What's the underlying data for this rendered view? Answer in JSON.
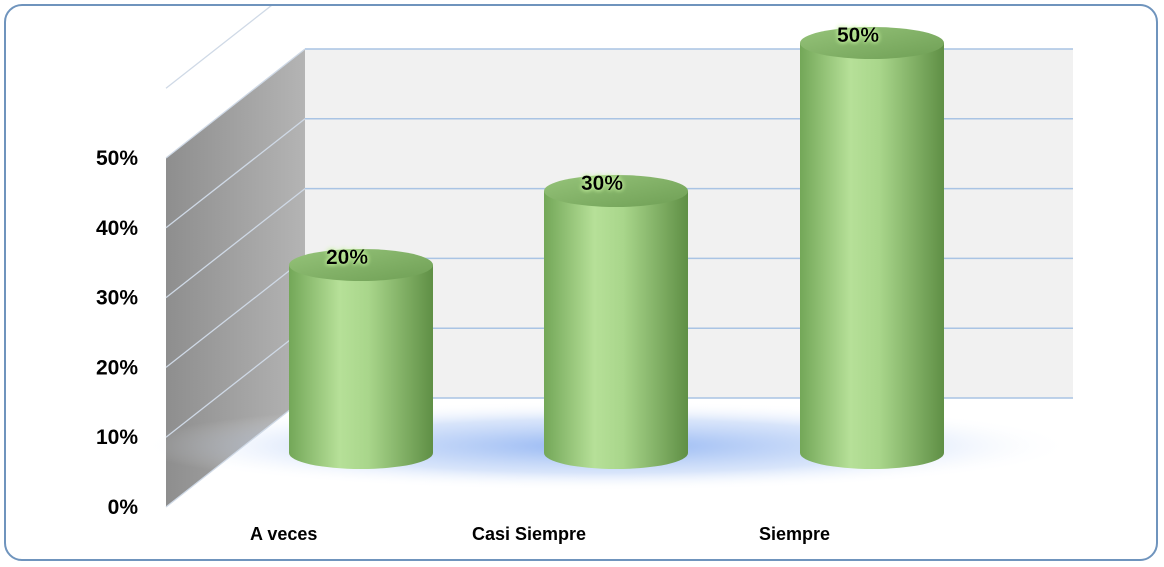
{
  "chart_data": {
    "type": "bar",
    "style": "3d-cylinder",
    "categories": [
      "A veces",
      "Casi Siempre",
      "Siempre"
    ],
    "values": [
      20,
      30,
      50
    ],
    "data_labels": [
      "20%",
      "30%",
      "50%"
    ],
    "y_ticks": [
      "0%",
      "10%",
      "20%",
      "30%",
      "40%",
      "50%"
    ],
    "ylim": [
      0,
      60
    ],
    "y_unit": "%",
    "grid": true,
    "legend": "none",
    "colors": {
      "bar": "#9ccc7e",
      "bar_dark": "#5f8f45",
      "bar_top": "#85b868",
      "side_wall": "#a9a9a9",
      "back_wall": "#f1f1f1",
      "grid": "#a9c4e4",
      "floor_glow": "#8eb3f0",
      "frame": "#6f94bd"
    }
  }
}
